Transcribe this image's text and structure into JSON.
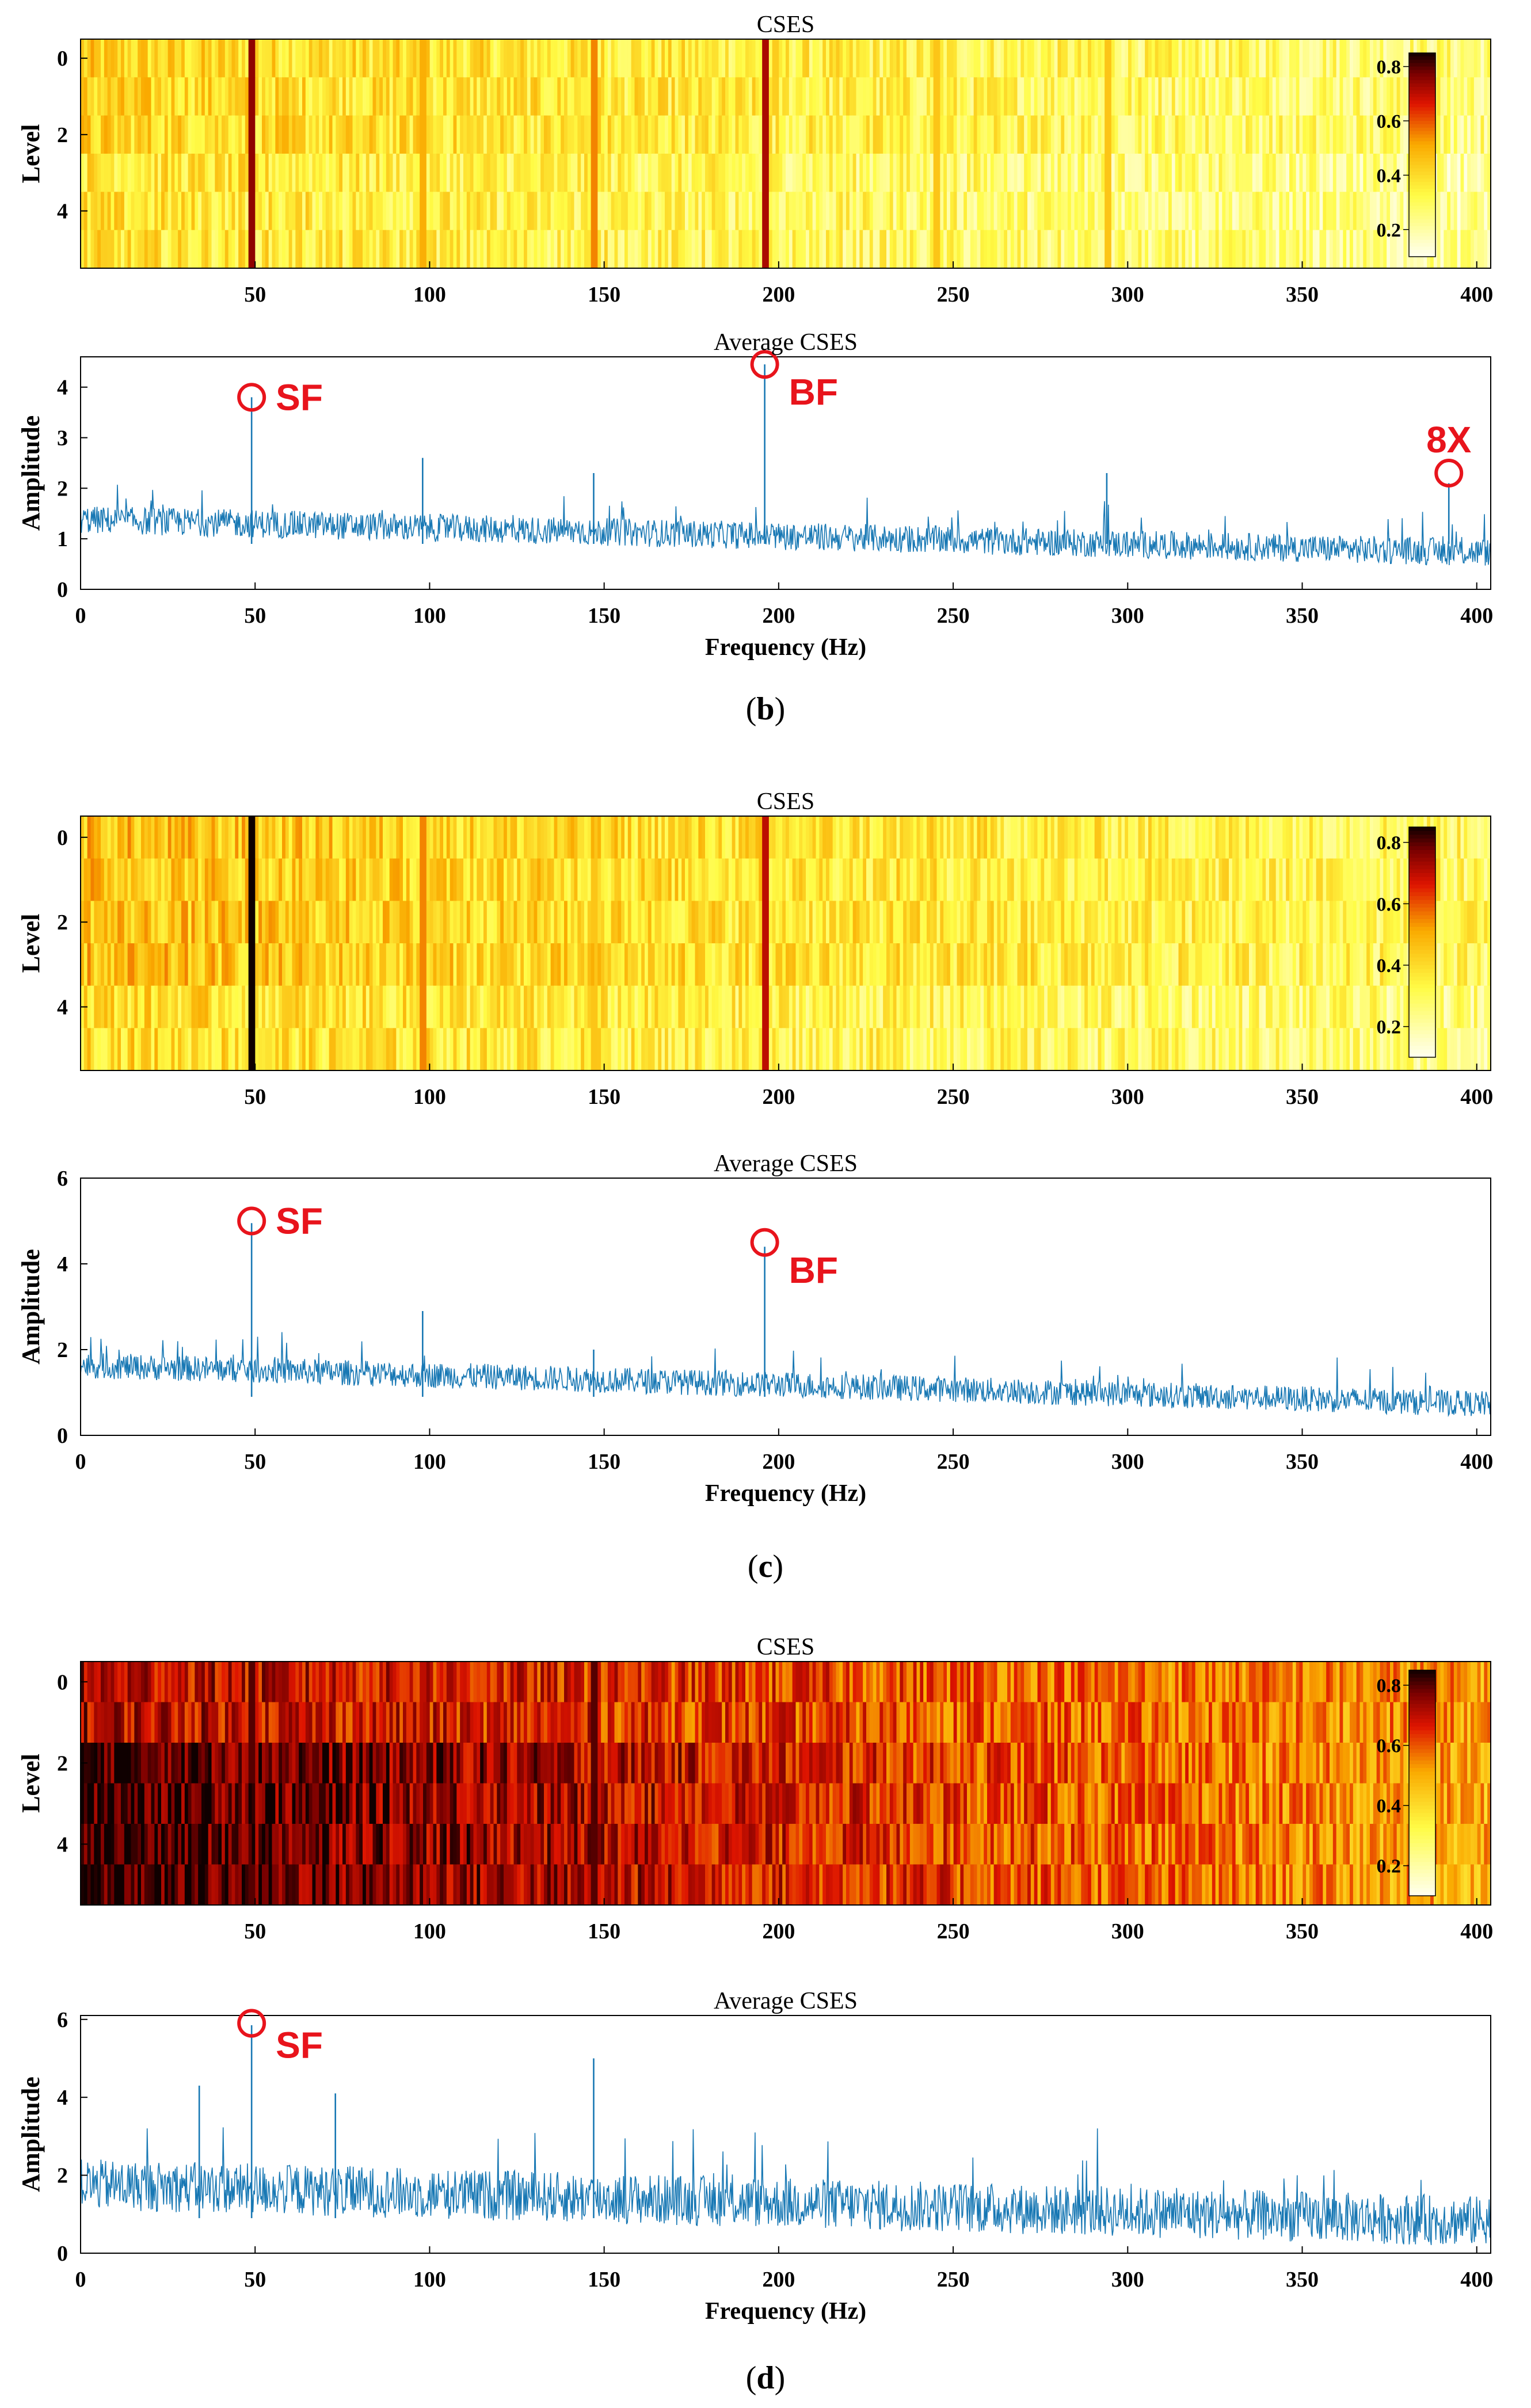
{
  "captions": [
    "(b)",
    "(c)",
    "(d)"
  ],
  "annotation_color": "#e8141c",
  "line_color": "#1878b4",
  "colorbar": {
    "ticks": [
      "0.8",
      "0.6",
      "0.4",
      "0.2"
    ],
    "range": [
      0.1,
      0.85
    ]
  },
  "chart_data": [
    {
      "type": "heatmap",
      "panel": "b",
      "title": "CSES",
      "ylabel": "Level",
      "xlabel": "",
      "xlim": [
        0,
        404
      ],
      "ylim": [
        0,
        5
      ],
      "xticks": [
        "50",
        "100",
        "150",
        "200",
        "250",
        "300",
        "350",
        "400"
      ],
      "yticks": [
        "0",
        "2",
        "4"
      ],
      "levels": 6,
      "base": 0.26,
      "decay": 0.45,
      "noise": 0.22,
      "peaks": [
        {
          "f": 49,
          "v": 0.75
        },
        {
          "f": 98,
          "v": 0.5
        },
        {
          "f": 147,
          "v": 0.55
        },
        {
          "f": 196,
          "v": 0.72
        },
        {
          "f": 245,
          "v": 0.45
        },
        {
          "f": 294,
          "v": 0.45
        }
      ]
    },
    {
      "type": "line",
      "panel": "b",
      "title": "Average CSES",
      "xlabel": "Frequency (Hz)",
      "ylabel": "Amplitude",
      "xlim": [
        0,
        404
      ],
      "ylim": [
        0,
        4.6
      ],
      "xticks": [
        "0",
        "50",
        "100",
        "150",
        "200",
        "250",
        "300",
        "350",
        "400"
      ],
      "yticks": [
        "0",
        "1",
        "2",
        "3",
        "4"
      ],
      "base_start": 1.35,
      "base_end": 0.7,
      "noise": 0.55,
      "peaks": [
        {
          "f": 49,
          "v": 3.8
        },
        {
          "f": 98,
          "v": 2.6
        },
        {
          "f": 147,
          "v": 2.3
        },
        {
          "f": 196,
          "v": 4.45
        },
        {
          "f": 294,
          "v": 2.3
        },
        {
          "f": 392,
          "v": 2.1
        }
      ],
      "annotations": [
        {
          "label": "SF",
          "f": 49,
          "v": 3.8
        },
        {
          "label": "BF",
          "f": 196,
          "v": 4.45
        },
        {
          "label": "8X",
          "f": 392,
          "v": 2.3
        }
      ]
    },
    {
      "type": "heatmap",
      "panel": "c",
      "title": "CSES",
      "ylabel": "Level",
      "xlabel": "",
      "xlim": [
        0,
        404
      ],
      "ylim": [
        0,
        5
      ],
      "xticks": [
        "50",
        "100",
        "150",
        "200",
        "250",
        "300",
        "350",
        "400"
      ],
      "yticks": [
        "0",
        "2",
        "4"
      ],
      "levels": 6,
      "base": 0.3,
      "decay": 0.45,
      "noise": 0.22,
      "peaks": [
        {
          "f": 49,
          "v": 0.85
        },
        {
          "f": 98,
          "v": 0.55
        },
        {
          "f": 147,
          "v": 0.45
        },
        {
          "f": 196,
          "v": 0.7
        }
      ]
    },
    {
      "type": "line",
      "panel": "c",
      "title": "Average CSES",
      "xlabel": "Frequency (Hz)",
      "ylabel": "Amplitude",
      "xlim": [
        0,
        404
      ],
      "ylim": [
        0,
        6
      ],
      "xticks": [
        "0",
        "50",
        "100",
        "150",
        "200",
        "250",
        "300",
        "350",
        "400"
      ],
      "yticks": [
        "0",
        "2",
        "4",
        "6"
      ],
      "base_start": 1.6,
      "base_end": 0.7,
      "noise": 0.6,
      "peaks": [
        {
          "f": 49,
          "v": 4.95
        },
        {
          "f": 98,
          "v": 2.9
        },
        {
          "f": 147,
          "v": 2.0
        },
        {
          "f": 196,
          "v": 4.4
        }
      ],
      "annotations": [
        {
          "label": "SF",
          "f": 49,
          "v": 5.0
        },
        {
          "label": "BF",
          "f": 196,
          "v": 4.5
        }
      ]
    },
    {
      "type": "heatmap",
      "panel": "d",
      "title": "CSES",
      "ylabel": "Level",
      "xlabel": "",
      "xlim": [
        0,
        404
      ],
      "ylim": [
        0,
        5
      ],
      "xticks": [
        "50",
        "100",
        "150",
        "200",
        "250",
        "300",
        "350",
        "400"
      ],
      "yticks": [
        "0",
        "2",
        "4"
      ],
      "levels": 6,
      "base": 0.52,
      "decay": 0.55,
      "noise": 0.22,
      "peaks": [
        {
          "f": 49,
          "v": 0.8
        },
        {
          "f": 98,
          "v": 0.7
        },
        {
          "f": 147,
          "v": 0.8
        },
        {
          "f": 245,
          "v": 0.5
        }
      ]
    },
    {
      "type": "line",
      "panel": "d",
      "title": "Average CSES",
      "xlabel": "Frequency (Hz)",
      "ylabel": "Amplitude",
      "xlim": [
        0,
        404
      ],
      "ylim": [
        0,
        6.1
      ],
      "xticks": [
        "0",
        "50",
        "100",
        "150",
        "200",
        "250",
        "300",
        "350",
        "400"
      ],
      "yticks": [
        "0",
        "2",
        "4",
        "6"
      ],
      "base_start": 1.7,
      "base_end": 0.75,
      "noise": 1.3,
      "peaks": [
        {
          "f": 49,
          "v": 5.85
        },
        {
          "f": 34,
          "v": 4.3
        },
        {
          "f": 73,
          "v": 4.1
        },
        {
          "f": 147,
          "v": 5.0
        }
      ],
      "annotations": [
        {
          "label": "SF",
          "f": 49,
          "v": 5.9
        }
      ]
    }
  ]
}
